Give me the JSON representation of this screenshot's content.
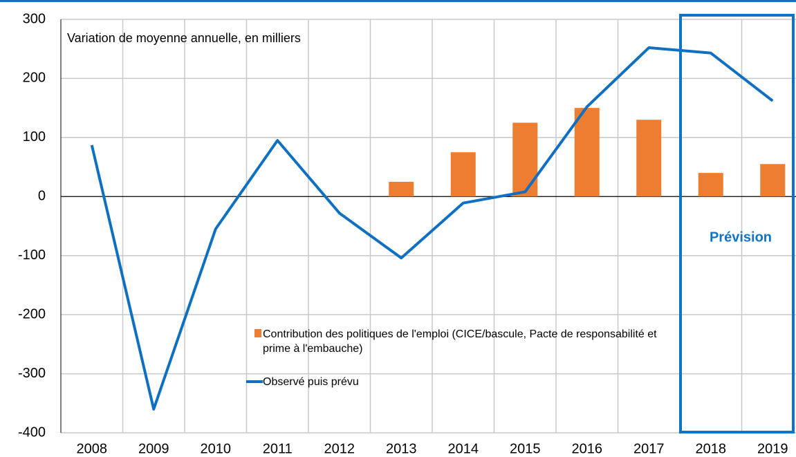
{
  "chart_data": {
    "type": "bar-line",
    "annotations": [
      "Variation de moyenne annuelle, en milliers",
      "Prévision"
    ],
    "categories": [
      "2008",
      "2009",
      "2010",
      "2011",
      "2012",
      "2013",
      "2014",
      "2015",
      "2016",
      "2017",
      "2018",
      "2019"
    ],
    "series": [
      {
        "name": "Contribution des politiques de l'emploi (CICE/bascule, Pacte de responsabilité et prime à l'embauche)",
        "type": "bar",
        "color": "#ed7d31",
        "values": [
          null,
          null,
          null,
          null,
          null,
          25,
          75,
          125,
          150,
          130,
          40,
          55
        ]
      },
      {
        "name": "Observé puis prévu",
        "type": "line",
        "color": "#0f6fc0",
        "values": [
          87,
          -360,
          -55,
          95,
          -28,
          -104,
          -11,
          8,
          152,
          252,
          243,
          162
        ]
      }
    ],
    "ylim": [
      -400,
      300
    ],
    "yticks": [
      -400,
      -300,
      -200,
      -100,
      0,
      100,
      200,
      300
    ],
    "grid": true
  }
}
